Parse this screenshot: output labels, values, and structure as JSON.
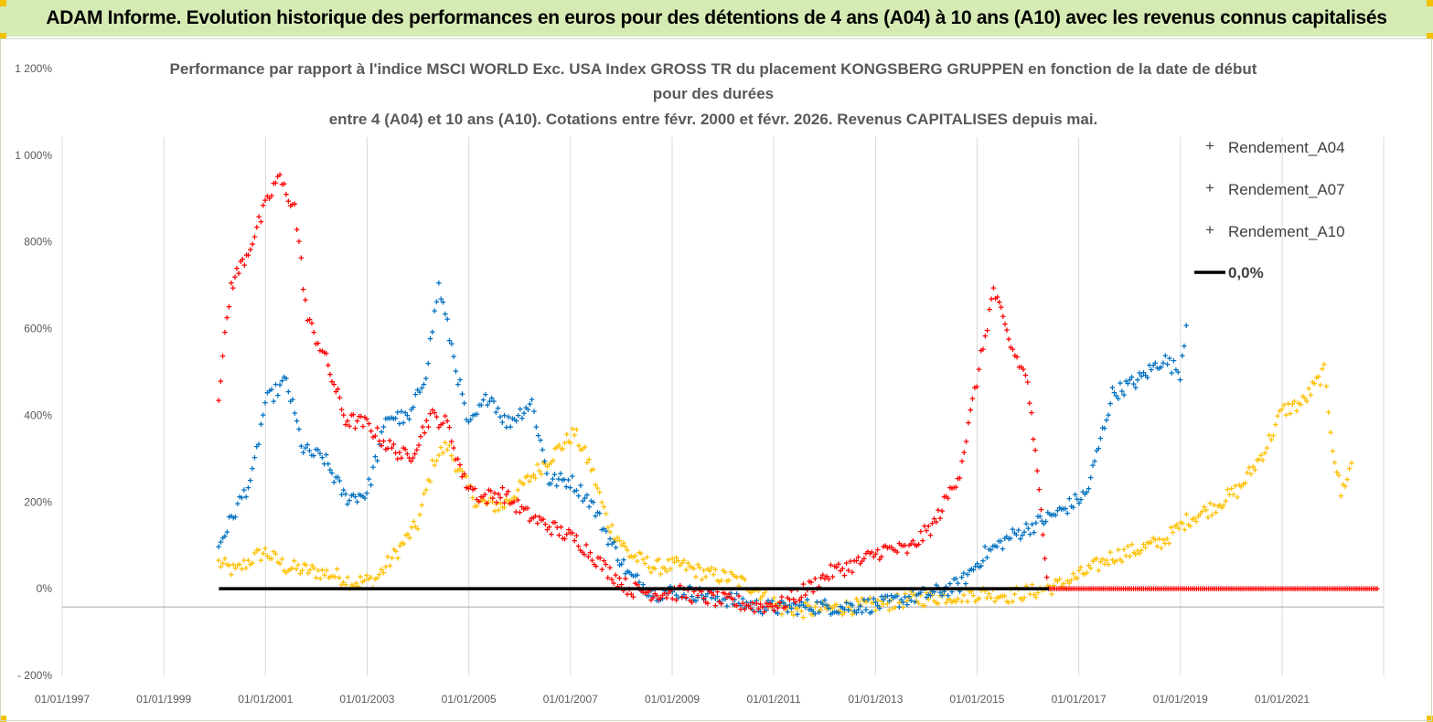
{
  "header": {
    "banner_title": "ADAM Informe. Evolution historique des performances en euros pour des détentions de 4 ans (A04) à 10 ans (A10) avec les revenus connus capitalisés"
  },
  "colors": {
    "banner_bg": "#d6ebb4",
    "A04": "#ffc000",
    "A07": "#0070c0",
    "A10": "#ff0000",
    "zero_line": "#000000"
  },
  "chart_data": {
    "type": "scatter",
    "title_lines": [
      "Performance par rapport à l'indice MSCI WORLD Exc. USA Index GROSS TR  du placement KONGSBERG GRUPPEN en fonction de la date de début",
      "pour des durées",
      "entre 4 (A04) et 10 ans (A10). Cotations entre févr. 2000 et févr. 2026. Revenus CAPITALISES depuis mai."
    ],
    "x_axis": {
      "type": "date",
      "range": [
        "1997-01-01",
        "2022-12-31"
      ],
      "tick_labels": [
        "01/01/1997",
        "01/01/1999",
        "01/01/2001",
        "01/01/2003",
        "01/01/2005",
        "01/01/2007",
        "01/01/2009",
        "01/01/2011",
        "01/01/2013",
        "01/01/2015",
        "01/01/2017",
        "01/01/2019",
        "01/01/2021"
      ],
      "gridlines": true
    },
    "y_axis": {
      "range": [
        -200,
        1200
      ],
      "unit": "%",
      "tick_values": [
        -200,
        0,
        200,
        400,
        600,
        800,
        1000,
        1200
      ],
      "tick_labels": [
        "- 200%",
        "0%",
        "200%",
        "400%",
        "600%",
        "800%",
        "1 000%",
        "1 200%"
      ],
      "gridlines": false
    },
    "legend": {
      "position": "right",
      "entries": [
        "Rendement_A04",
        "Rendement_A07",
        "Rendement_A10",
        "0,0%"
      ]
    },
    "series": [
      {
        "name": "Rendement_A04",
        "marker": "+",
        "points": [
          [
            "2000-02-01",
            60
          ],
          [
            "2000-06-01",
            40
          ],
          [
            "2000-10-01",
            70
          ],
          [
            "2001-01-01",
            85
          ],
          [
            "2001-06-01",
            50
          ],
          [
            "2002-01-01",
            40
          ],
          [
            "2002-06-01",
            30
          ],
          [
            "2002-10-01",
            15
          ],
          [
            "2003-03-01",
            20
          ],
          [
            "2003-07-01",
            70
          ],
          [
            "2004-01-01",
            150
          ],
          [
            "2004-05-01",
            300
          ],
          [
            "2004-08-01",
            330
          ],
          [
            "2004-12-01",
            250
          ],
          [
            "2005-03-01",
            200
          ],
          [
            "2005-09-01",
            190
          ],
          [
            "2006-03-01",
            250
          ],
          [
            "2006-09-01",
            310
          ],
          [
            "2007-02-01",
            360
          ],
          [
            "2007-06-01",
            280
          ],
          [
            "2007-10-01",
            150
          ],
          [
            "2008-03-01",
            80
          ],
          [
            "2008-09-01",
            50
          ],
          [
            "2009-03-01",
            55
          ],
          [
            "2009-09-01",
            35
          ],
          [
            "2010-03-01",
            25
          ],
          [
            "2010-09-01",
            0
          ],
          [
            "2011-03-01",
            -45
          ],
          [
            "2011-09-01",
            -50
          ],
          [
            "2012-03-01",
            -45
          ],
          [
            "2012-09-01",
            -40
          ],
          [
            "2013-03-01",
            -35
          ],
          [
            "2013-09-01",
            -25
          ],
          [
            "2014-03-01",
            -20
          ],
          [
            "2014-09-01",
            -15
          ],
          [
            "2015-03-01",
            -10
          ],
          [
            "2015-09-01",
            -15
          ],
          [
            "2016-03-01",
            -5
          ],
          [
            "2016-09-01",
            10
          ],
          [
            "2017-03-01",
            40
          ],
          [
            "2017-09-01",
            75
          ],
          [
            "2018-03-01",
            90
          ],
          [
            "2018-09-01",
            110
          ],
          [
            "2019-03-01",
            160
          ],
          [
            "2019-09-01",
            190
          ],
          [
            "2020-03-01",
            230
          ],
          [
            "2020-09-01",
            320
          ],
          [
            "2021-01-01",
            410
          ],
          [
            "2021-06-01",
            430
          ],
          [
            "2021-11-01",
            500
          ],
          [
            "2022-01-01",
            330
          ],
          [
            "2022-03-01",
            220
          ],
          [
            "2022-06-01",
            300
          ]
        ]
      },
      {
        "name": "Rendement_A07",
        "marker": "+",
        "points": [
          [
            "2000-02-01",
            100
          ],
          [
            "2000-06-01",
            180
          ],
          [
            "2000-10-01",
            260
          ],
          [
            "2001-01-01",
            430
          ],
          [
            "2001-06-01",
            480
          ],
          [
            "2001-10-01",
            320
          ],
          [
            "2002-03-01",
            300
          ],
          [
            "2002-08-01",
            210
          ],
          [
            "2003-01-01",
            220
          ],
          [
            "2003-06-01",
            400
          ],
          [
            "2003-11-01",
            390
          ],
          [
            "2004-03-01",
            500
          ],
          [
            "2004-06-01",
            700
          ],
          [
            "2004-09-01",
            560
          ],
          [
            "2005-01-01",
            370
          ],
          [
            "2005-06-01",
            450
          ],
          [
            "2005-10-01",
            380
          ],
          [
            "2006-04-01",
            430
          ],
          [
            "2006-08-01",
            250
          ],
          [
            "2007-01-01",
            250
          ],
          [
            "2007-06-01",
            200
          ],
          [
            "2007-10-01",
            120
          ],
          [
            "2008-03-01",
            30
          ],
          [
            "2008-09-01",
            -10
          ],
          [
            "2009-03-01",
            -5
          ],
          [
            "2009-09-01",
            -15
          ],
          [
            "2010-03-01",
            -25
          ],
          [
            "2010-09-01",
            -40
          ],
          [
            "2011-03-01",
            -45
          ],
          [
            "2011-09-01",
            -40
          ],
          [
            "2012-03-01",
            -42
          ],
          [
            "2012-09-01",
            -40
          ],
          [
            "2013-03-01",
            -35
          ],
          [
            "2013-09-01",
            -20
          ],
          [
            "2014-03-01",
            -10
          ],
          [
            "2014-09-01",
            10
          ],
          [
            "2015-03-01",
            80
          ],
          [
            "2015-09-01",
            120
          ],
          [
            "2016-03-01",
            150
          ],
          [
            "2016-09-01",
            180
          ],
          [
            "2017-03-01",
            220
          ],
          [
            "2017-09-01",
            450
          ],
          [
            "2018-03-01",
            480
          ],
          [
            "2018-09-01",
            530
          ],
          [
            "2019-01-01",
            500
          ],
          [
            "2019-03-01",
            650
          ]
        ]
      },
      {
        "name": "Rendement_A10",
        "marker": "+",
        "points": [
          [
            "2000-02-01",
            450
          ],
          [
            "2000-05-01",
            700
          ],
          [
            "2000-09-01",
            780
          ],
          [
            "2001-01-01",
            880
          ],
          [
            "2001-04-01",
            950
          ],
          [
            "2001-08-01",
            880
          ],
          [
            "2001-11-01",
            620
          ],
          [
            "2002-03-01",
            540
          ],
          [
            "2002-08-01",
            390
          ],
          [
            "2003-01-01",
            380
          ],
          [
            "2003-06-01",
            330
          ],
          [
            "2003-11-01",
            300
          ],
          [
            "2004-04-01",
            400
          ],
          [
            "2004-08-01",
            380
          ],
          [
            "2004-12-01",
            250
          ],
          [
            "2005-04-01",
            210
          ],
          [
            "2005-09-01",
            220
          ],
          [
            "2006-03-01",
            170
          ],
          [
            "2006-09-01",
            140
          ],
          [
            "2007-03-01",
            110
          ],
          [
            "2007-09-01",
            50
          ],
          [
            "2008-03-01",
            0
          ],
          [
            "2008-09-01",
            -10
          ],
          [
            "2009-03-01",
            -10
          ],
          [
            "2009-09-01",
            -20
          ],
          [
            "2010-03-01",
            -30
          ],
          [
            "2010-09-01",
            -40
          ],
          [
            "2011-03-01",
            -35
          ],
          [
            "2011-09-01",
            0
          ],
          [
            "2012-03-01",
            40
          ],
          [
            "2012-09-01",
            60
          ],
          [
            "2013-03-01",
            90
          ],
          [
            "2013-09-01",
            90
          ],
          [
            "2014-03-01",
            150
          ],
          [
            "2014-09-01",
            270
          ],
          [
            "2015-01-01",
            480
          ],
          [
            "2015-05-01",
            690
          ],
          [
            "2015-09-01",
            560
          ],
          [
            "2016-01-01",
            480
          ],
          [
            "2016-06-01",
            0
          ],
          [
            "2018-01-01",
            0
          ],
          [
            "2020-01-01",
            0
          ],
          [
            "2022-12-01",
            0
          ]
        ]
      }
    ],
    "reference_line": {
      "name": "0,0%",
      "y": 0,
      "from": "2000-02-01",
      "to": "2016-06-01"
    }
  }
}
